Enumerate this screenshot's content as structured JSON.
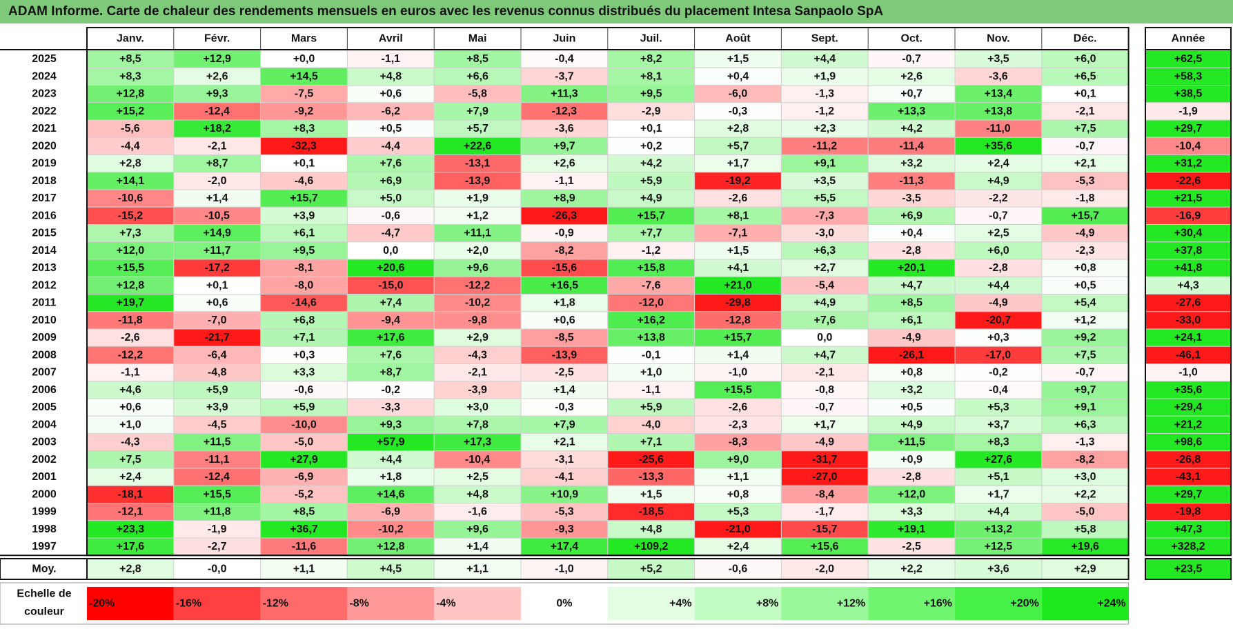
{
  "title": "ADAM Informe. Carte de chaleur des rendements mensuels en euros avec les revenus connus distribués du placement Intesa Sanpaolo SpA",
  "chart_data": {
    "type": "heatmap",
    "columns": [
      "Janv.",
      "Févr.",
      "Mars",
      "Avril",
      "Mai",
      "Juin",
      "Juil.",
      "Août",
      "Sept.",
      "Oct.",
      "Nov.",
      "Déc."
    ],
    "year_header": "Année",
    "rows": [
      {
        "year": "2025",
        "values": [
          "+8,5",
          "+12,9",
          "+0,0",
          "-1,1",
          "+8,5",
          "-0,4",
          "+8,2",
          "+1,5",
          "+4,4",
          "-0,7",
          "+3,5",
          "+6,0"
        ],
        "annual": "+62,5"
      },
      {
        "year": "2024",
        "values": [
          "+8,3",
          "+2,6",
          "+14,5",
          "+4,8",
          "+6,6",
          "-3,7",
          "+8,1",
          "+0,4",
          "+1,9",
          "+2,6",
          "-3,6",
          "+6,5"
        ],
        "annual": "+58,3"
      },
      {
        "year": "2023",
        "values": [
          "+12,8",
          "+9,3",
          "-7,5",
          "+0,6",
          "-5,8",
          "+11,3",
          "+9,5",
          "-6,0",
          "-1,3",
          "+0,7",
          "+13,4",
          "+0,1"
        ],
        "annual": "+38,5"
      },
      {
        "year": "2022",
        "values": [
          "+15,2",
          "-12,4",
          "-9,2",
          "-6,2",
          "+7,9",
          "-12,3",
          "-2,9",
          "-0,3",
          "-1,2",
          "+13,3",
          "+13,8",
          "-2,1"
        ],
        "annual": "-1,9"
      },
      {
        "year": "2021",
        "values": [
          "-5,6",
          "+18,2",
          "+8,3",
          "+0,5",
          "+5,7",
          "-3,6",
          "+0,1",
          "+2,8",
          "+2,3",
          "+4,2",
          "-11,0",
          "+7,5"
        ],
        "annual": "+29,7"
      },
      {
        "year": "2020",
        "values": [
          "-4,4",
          "-2,1",
          "-32,3",
          "-4,4",
          "+22,6",
          "+9,7",
          "+0,2",
          "+5,7",
          "-11,2",
          "-11,4",
          "+35,6",
          "-0,7"
        ],
        "annual": "-10,4"
      },
      {
        "year": "2019",
        "values": [
          "+2,8",
          "+8,7",
          "+0,1",
          "+7,6",
          "-13,1",
          "+2,6",
          "+4,2",
          "+1,7",
          "+9,1",
          "+3,2",
          "+2,4",
          "+2,1"
        ],
        "annual": "+31,2"
      },
      {
        "year": "2018",
        "values": [
          "+14,1",
          "-2,0",
          "-4,6",
          "+6,9",
          "-13,9",
          "-1,1",
          "+5,9",
          "-19,2",
          "+3,5",
          "-11,3",
          "+4,9",
          "-5,3"
        ],
        "annual": "-22,6"
      },
      {
        "year": "2017",
        "values": [
          "-10,6",
          "+1,4",
          "+15,7",
          "+5,0",
          "+1,9",
          "+8,9",
          "+4,9",
          "-2,6",
          "+5,5",
          "-3,5",
          "-2,2",
          "-1,8"
        ],
        "annual": "+21,5"
      },
      {
        "year": "2016",
        "values": [
          "-15,2",
          "-10,5",
          "+3,9",
          "-0,6",
          "+1,2",
          "-26,3",
          "+15,7",
          "+8,1",
          "-7,3",
          "+6,9",
          "-0,7",
          "+15,7"
        ],
        "annual": "-16,9"
      },
      {
        "year": "2015",
        "values": [
          "+7,3",
          "+14,9",
          "+6,1",
          "-4,7",
          "+11,1",
          "-0,9",
          "+7,7",
          "-7,1",
          "-3,0",
          "+0,4",
          "+2,5",
          "-4,9"
        ],
        "annual": "+30,4"
      },
      {
        "year": "2014",
        "values": [
          "+12,0",
          "+11,7",
          "+9,5",
          "0,0",
          "+2,0",
          "-8,2",
          "-1,2",
          "+1,5",
          "+6,3",
          "-2,8",
          "+6,0",
          "-2,3"
        ],
        "annual": "+37,8"
      },
      {
        "year": "2013",
        "values": [
          "+15,5",
          "-17,2",
          "-8,1",
          "+20,6",
          "+9,6",
          "-15,6",
          "+15,8",
          "+4,1",
          "+2,7",
          "+20,1",
          "-2,8",
          "+0,8"
        ],
        "annual": "+41,8"
      },
      {
        "year": "2012",
        "values": [
          "+12,8",
          "+0,1",
          "-8,0",
          "-15,0",
          "-12,2",
          "+16,5",
          "-7,6",
          "+21,0",
          "-5,4",
          "+4,7",
          "+4,4",
          "+0,5"
        ],
        "annual": "+4,3"
      },
      {
        "year": "2011",
        "values": [
          "+19,7",
          "+0,6",
          "-14,6",
          "+7,4",
          "-10,2",
          "+1,8",
          "-12,0",
          "-29,8",
          "+4,9",
          "+8,5",
          "-4,9",
          "+5,4"
        ],
        "annual": "-27,6"
      },
      {
        "year": "2010",
        "values": [
          "-11,8",
          "-7,0",
          "+6,8",
          "-9,4",
          "-9,8",
          "+0,6",
          "+16,2",
          "-12,8",
          "+7,6",
          "+6,1",
          "-20,7",
          "+1,2"
        ],
        "annual": "-33,0"
      },
      {
        "year": "2009",
        "values": [
          "-2,6",
          "-21,7",
          "+7,1",
          "+17,6",
          "+2,9",
          "-8,5",
          "+13,8",
          "+15,7",
          "0,0",
          "-4,9",
          "+0,3",
          "+9,2"
        ],
        "annual": "+24,1"
      },
      {
        "year": "2008",
        "values": [
          "-12,2",
          "-6,4",
          "+0,3",
          "+7,6",
          "-4,3",
          "-13,9",
          "-0,1",
          "+1,4",
          "+4,7",
          "-26,1",
          "-17,0",
          "+7,5"
        ],
        "annual": "-46,1"
      },
      {
        "year": "2007",
        "values": [
          "-1,1",
          "-4,8",
          "+3,3",
          "+8,7",
          "-2,1",
          "-2,5",
          "+1,0",
          "-1,0",
          "-2,1",
          "+0,8",
          "-0,2",
          "-0,7"
        ],
        "annual": "-1,0"
      },
      {
        "year": "2006",
        "values": [
          "+4,6",
          "+5,9",
          "-0,6",
          "-0,2",
          "-3,9",
          "+1,4",
          "-1,1",
          "+15,5",
          "-0,8",
          "+3,2",
          "-0,4",
          "+9,7"
        ],
        "annual": "+35,6"
      },
      {
        "year": "2005",
        "values": [
          "+0,6",
          "+3,9",
          "+5,9",
          "-3,3",
          "+3,0",
          "-0,3",
          "+5,9",
          "-2,6",
          "-0,7",
          "+0,5",
          "+5,3",
          "+9,1"
        ],
        "annual": "+29,4"
      },
      {
        "year": "2004",
        "values": [
          "+1,0",
          "-4,5",
          "-10,0",
          "+9,3",
          "+7,8",
          "+7,9",
          "-4,0",
          "-2,3",
          "+1,7",
          "+4,9",
          "+3,7",
          "+6,3"
        ],
        "annual": "+21,2"
      },
      {
        "year": "2003",
        "values": [
          "-4,3",
          "+11,5",
          "-5,0",
          "+57,9",
          "+17,3",
          "+2,1",
          "+7,1",
          "-8,3",
          "-4,9",
          "+11,5",
          "+8,3",
          "-1,3"
        ],
        "annual": "+98,6"
      },
      {
        "year": "2002",
        "values": [
          "+7,5",
          "-11,1",
          "+27,9",
          "+4,4",
          "-10,4",
          "-3,1",
          "-25,6",
          "+9,0",
          "-31,7",
          "+0,9",
          "+27,6",
          "-8,2"
        ],
        "annual": "-26,8"
      },
      {
        "year": "2001",
        "values": [
          "+2,4",
          "-12,4",
          "-6,9",
          "+1,8",
          "+2,5",
          "-4,1",
          "-13,3",
          "+1,1",
          "-27,0",
          "-2,8",
          "+5,1",
          "+3,0"
        ],
        "annual": "-43,1"
      },
      {
        "year": "2000",
        "values": [
          "-18,1",
          "+15,5",
          "-5,2",
          "+14,6",
          "+4,8",
          "+10,9",
          "+1,5",
          "+0,8",
          "-8,4",
          "+12,0",
          "+1,7",
          "+2,2"
        ],
        "annual": "+29,7"
      },
      {
        "year": "1999",
        "values": [
          "-12,1",
          "+11,8",
          "+8,5",
          "-6,9",
          "-1,6",
          "-5,3",
          "-18,5",
          "+5,3",
          "-1,7",
          "+3,3",
          "+4,4",
          "-5,0"
        ],
        "annual": "-19,8"
      },
      {
        "year": "1998",
        "values": [
          "+23,3",
          "-1,9",
          "+36,7",
          "-10,2",
          "+9,6",
          "-9,3",
          "+4,8",
          "-21,0",
          "-15,7",
          "+19,1",
          "+13,2",
          "+5,8"
        ],
        "annual": "+47,3"
      },
      {
        "year": "1997",
        "values": [
          "+17,6",
          "-2,7",
          "-11,6",
          "+12,8",
          "+1,4",
          "+17,4",
          "+109,2",
          "+2,4",
          "+15,6",
          "-2,5",
          "+12,5",
          "+19,6"
        ],
        "annual": "+328,2"
      }
    ],
    "average": {
      "label": "Moy.",
      "values": [
        "+2,8",
        "-0,0",
        "+1,1",
        "+4,5",
        "+1,1",
        "-1,0",
        "+5,2",
        "-0,6",
        "-2,0",
        "+2,2",
        "+3,6",
        "+2,9"
      ],
      "annual": "+23,5"
    },
    "scale": {
      "label_line1": "Echelle de",
      "label_line2": "couleur",
      "steps": [
        "-20%",
        "-16%",
        "-12%",
        "-8%",
        "-4%",
        "0%",
        "+4%",
        "+8%",
        "+12%",
        "+16%",
        "+20%",
        "+24%"
      ],
      "step_colors": [
        "#ff0000",
        "#ff4040",
        "#ff6b6b",
        "#ff9999",
        "#ffc4c4",
        "#ffffff",
        "#e3fde3",
        "#c2fcc2",
        "#99f899",
        "#6ff56f",
        "#47f047",
        "#1ee81e"
      ]
    }
  }
}
